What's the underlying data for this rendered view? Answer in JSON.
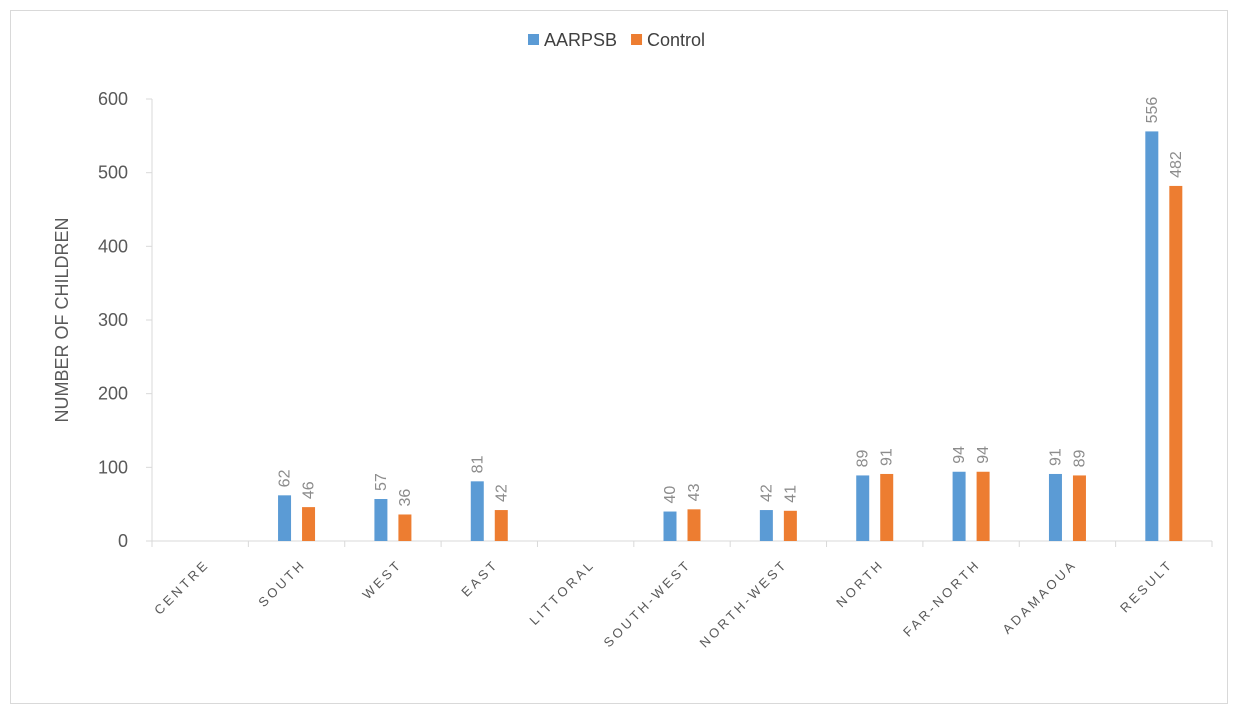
{
  "chart_data": {
    "type": "bar",
    "title": "",
    "xlabel": "",
    "ylabel": "NUMBER OF CHILDREN",
    "ylim": [
      0,
      600
    ],
    "yticks": [
      0,
      100,
      200,
      300,
      400,
      500,
      600
    ],
    "grid": false,
    "legend_position": "top-center",
    "categories": [
      "CENTRE",
      "SOUTH",
      "WEST",
      "EAST",
      "LITTORAL",
      "SOUTH-WEST",
      "NORTH-WEST",
      "NORTH",
      "FAR-NORTH",
      "ADAMAOUA",
      "RESULT"
    ],
    "series": [
      {
        "name": "AARPSB",
        "color": "#5b9bd5",
        "values": [
          null,
          62,
          57,
          81,
          null,
          40,
          42,
          89,
          94,
          91,
          556
        ]
      },
      {
        "name": "Control",
        "color": "#ed7d31",
        "values": [
          null,
          46,
          36,
          42,
          null,
          43,
          41,
          91,
          94,
          89,
          482
        ]
      }
    ]
  }
}
